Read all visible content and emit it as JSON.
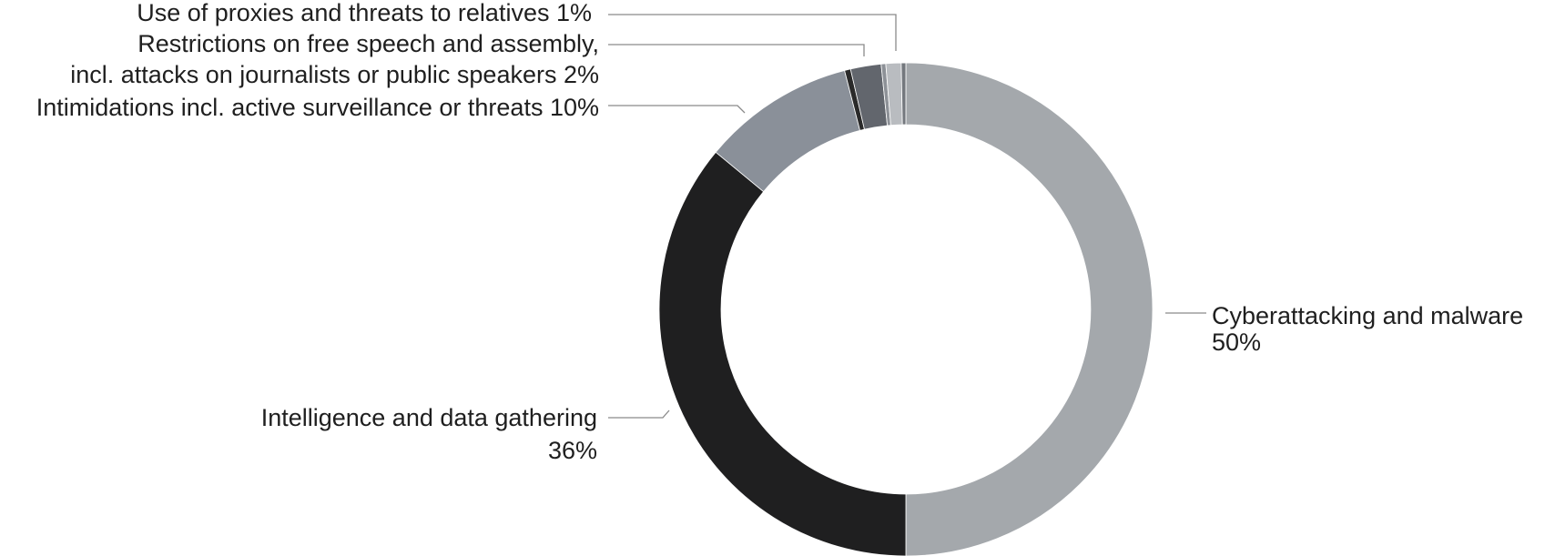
{
  "chart_data": {
    "type": "pie",
    "variant": "donut",
    "title": "",
    "legend": "none",
    "colors_note": "slice colors listed per slice",
    "slices": [
      {
        "label": "Cyberattacking and malware",
        "value": 50,
        "value_label": "50%",
        "color": "#a4a8ac"
      },
      {
        "label": "Intelligence and data gathering",
        "value": 36,
        "value_label": "36%",
        "color": "#1f1f20"
      },
      {
        "label": "Intimidations incl. active surveillance or threats",
        "value": 10,
        "value_label": "10%",
        "color": "#8a9099"
      },
      {
        "label": "Unlabeled segment (dark)",
        "value": 0.4,
        "value_label": "",
        "color": "#2a2a2a"
      },
      {
        "label": "Restrictions on free speech and assembly, incl. attacks on journalists or public speakers",
        "value": 2,
        "value_label": "2%",
        "color": "#62666d"
      },
      {
        "label": "Unlabeled segment (grey)",
        "value": 0.3,
        "value_label": "",
        "color": "#8d9197"
      },
      {
        "label": "Use of proxies and threats to relatives",
        "value": 1,
        "value_label": "1%",
        "color": "#b9bcc0"
      },
      {
        "label": "Unlabeled segment (thin)",
        "value": 0.3,
        "value_label": "",
        "color": "#74787e"
      }
    ],
    "labels": {
      "proxies": "Use of proxies and threats to relatives 1%",
      "restrictions_line1": "Restrictions on free speech and assembly,",
      "restrictions_line2": "incl. attacks on journalists or public speakers 2%",
      "intimidations": "Intimidations incl. active surveillance or threats 10%",
      "cyber_line1": "Cyberattacking and malware",
      "cyber_line2": "50%",
      "intel_line1": "Intelligence and data gathering",
      "intel_line2": "36%"
    }
  }
}
